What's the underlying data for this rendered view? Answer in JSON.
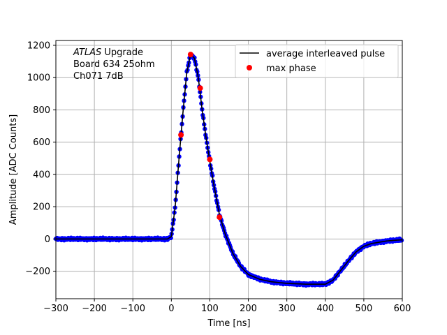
{
  "chart_data": {
    "type": "scatter",
    "xlabel": "Time [ns]",
    "ylabel": "Amplitude [ADC Counts]",
    "xlim": [
      -300,
      600
    ],
    "ylim": [
      -370,
      1230
    ],
    "xticks": [
      -300,
      -200,
      -100,
      0,
      100,
      200,
      300,
      400,
      500,
      600
    ],
    "xtick_labels": [
      "−300",
      "−200",
      "−100",
      "0",
      "100",
      "200",
      "300",
      "400",
      "500",
      "600"
    ],
    "yticks": [
      -200,
      0,
      200,
      400,
      600,
      800,
      1000,
      1200
    ],
    "ytick_labels": [
      "−200",
      "0",
      "200",
      "400",
      "600",
      "800",
      "1000",
      "1200"
    ],
    "grid": true,
    "legend_position": "top-right",
    "annotation": {
      "lines": [
        {
          "italic": "ATLAS",
          "rest": " Upgrade"
        },
        {
          "italic": "",
          "rest": " Board 634 25ohm"
        },
        {
          "italic": "",
          "rest": " Ch071 7dB"
        }
      ]
    },
    "series": [
      {
        "name": "average interleaved pulse",
        "kind": "line",
        "color": "#000000",
        "x": [
          -300,
          -100,
          -10,
          0,
          10,
          20,
          30,
          40,
          50,
          60,
          70,
          80,
          90,
          100,
          110,
          125,
          140,
          160,
          180,
          200,
          230,
          260,
          300,
          350,
          400,
          420,
          440,
          460,
          480,
          500,
          520,
          540,
          560,
          580,
          600
        ],
        "y": [
          0,
          0,
          0,
          15,
          200,
          500,
          780,
          1030,
          1145,
          1120,
          1000,
          800,
          630,
          480,
          340,
          150,
          30,
          -90,
          -170,
          -220,
          -250,
          -265,
          -275,
          -280,
          -280,
          -255,
          -195,
          -135,
          -80,
          -45,
          -28,
          -20,
          -12,
          -8,
          -5
        ]
      },
      {
        "name": "",
        "kind": "points",
        "color": "#0000ff",
        "x": [
          -300,
          -100,
          -10,
          0,
          10,
          20,
          30,
          40,
          50,
          60,
          70,
          80,
          90,
          100,
          110,
          125,
          140,
          160,
          180,
          200,
          230,
          260,
          300,
          350,
          400,
          420,
          440,
          460,
          480,
          500,
          520,
          540,
          560,
          580,
          600
        ],
        "y": [
          0,
          0,
          0,
          15,
          200,
          500,
          780,
          1030,
          1145,
          1120,
          1000,
          800,
          630,
          480,
          340,
          150,
          30,
          -90,
          -170,
          -220,
          -250,
          -265,
          -275,
          -280,
          -280,
          -255,
          -195,
          -135,
          -80,
          -45,
          -28,
          -20,
          -12,
          -8,
          -5
        ]
      },
      {
        "name": "max phase",
        "kind": "markers",
        "color": "#ff0000",
        "x": [
          25,
          50,
          75,
          100,
          125
        ],
        "y": [
          645,
          1143,
          935,
          493,
          135
        ]
      }
    ]
  }
}
